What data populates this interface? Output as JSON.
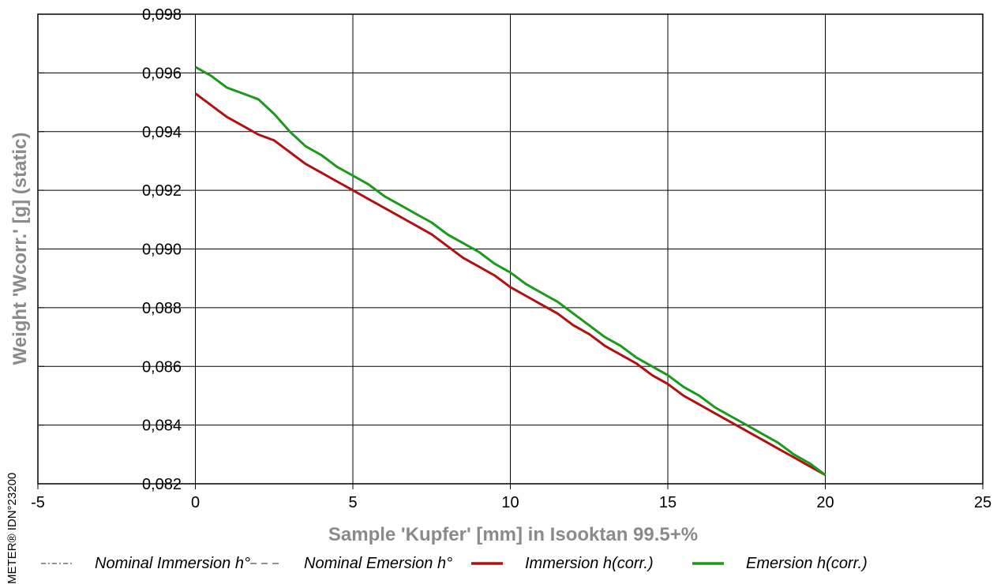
{
  "chart_data": {
    "type": "line",
    "title": "",
    "xlabel": "Sample 'Kupfer' [mm] in Isooktan 99.5+%",
    "ylabel": "Weight 'Wcorr.' [g]  (static)",
    "xlim": [
      -5,
      25
    ],
    "ylim": [
      0.082,
      0.098
    ],
    "x_ticks": [
      -5,
      0,
      5,
      10,
      15,
      20,
      25
    ],
    "x_tick_labels": [
      "-5",
      "0",
      "5",
      "10",
      "15",
      "20",
      "25"
    ],
    "y_ticks": [
      0.082,
      0.084,
      0.086,
      0.088,
      0.09,
      0.092,
      0.094,
      0.096,
      0.098
    ],
    "y_tick_labels": [
      "0,082",
      "0,084",
      "0,086",
      "0,088",
      "0,090",
      "0,092",
      "0,094",
      "0,096",
      "0,098"
    ],
    "grid": true,
    "legend_position": "bottom",
    "series": [
      {
        "name": "Nominal Immersion h°",
        "color": "#6e6e6e",
        "style": "dash-dot",
        "x": [
          0,
          0.5,
          1,
          1.5,
          2,
          2.5,
          3,
          3.5,
          4,
          4.5,
          5,
          5.5,
          6,
          6.5,
          7,
          7.5,
          8,
          8.5,
          9,
          9.5,
          10,
          10.5,
          11,
          11.5,
          12,
          12.5,
          13,
          13.5,
          14,
          14.5,
          15,
          15.5,
          16,
          16.5,
          17,
          17.5,
          18,
          18.5,
          19,
          19.5,
          20
        ],
        "y": [
          0.0953,
          0.0949,
          0.0945,
          0.0942,
          0.0939,
          0.0937,
          0.0933,
          0.0929,
          0.0926,
          0.0923,
          0.092,
          0.0917,
          0.0914,
          0.0911,
          0.0908,
          0.0905,
          0.0901,
          0.0897,
          0.0894,
          0.0891,
          0.0887,
          0.0884,
          0.0881,
          0.0878,
          0.0874,
          0.0871,
          0.0867,
          0.0864,
          0.0861,
          0.0857,
          0.0854,
          0.085,
          0.0847,
          0.0844,
          0.0841,
          0.0838,
          0.0835,
          0.0832,
          0.0829,
          0.0826,
          0.0823
        ]
      },
      {
        "name": "Nominal Emersion h°",
        "color": "#5a7a5a",
        "style": "dash",
        "x": [
          0,
          0.5,
          1,
          1.5,
          2,
          2.5,
          3,
          3.5,
          4,
          4.5,
          5,
          5.5,
          6,
          6.5,
          7,
          7.5,
          8,
          8.5,
          9,
          9.5,
          10,
          10.5,
          11,
          11.5,
          12,
          12.5,
          13,
          13.5,
          14,
          14.5,
          15,
          15.5,
          16,
          16.5,
          17,
          17.5,
          18,
          18.5,
          19,
          19.5,
          20
        ],
        "y": [
          0.0962,
          0.0959,
          0.0955,
          0.0953,
          0.0951,
          0.0946,
          0.094,
          0.0935,
          0.0932,
          0.0928,
          0.0925,
          0.0922,
          0.0918,
          0.0915,
          0.0912,
          0.0909,
          0.0905,
          0.0902,
          0.0899,
          0.0895,
          0.0892,
          0.0888,
          0.0885,
          0.0882,
          0.0878,
          0.0874,
          0.087,
          0.0867,
          0.0863,
          0.086,
          0.0857,
          0.0853,
          0.085,
          0.0846,
          0.0843,
          0.084,
          0.0837,
          0.0834,
          0.083,
          0.0827,
          0.0823
        ]
      },
      {
        "name": "Immersion h(corr.)",
        "color": "#b01010",
        "style": "solid",
        "x": [
          0,
          0.5,
          1,
          1.5,
          2,
          2.5,
          3,
          3.5,
          4,
          4.5,
          5,
          5.5,
          6,
          6.5,
          7,
          7.5,
          8,
          8.5,
          9,
          9.5,
          10,
          10.5,
          11,
          11.5,
          12,
          12.5,
          13,
          13.5,
          14,
          14.5,
          15,
          15.5,
          16,
          16.5,
          17,
          17.5,
          18,
          18.5,
          19,
          19.5,
          20
        ],
        "y": [
          0.0953,
          0.0949,
          0.0945,
          0.0942,
          0.0939,
          0.0937,
          0.0933,
          0.0929,
          0.0926,
          0.0923,
          0.092,
          0.0917,
          0.0914,
          0.0911,
          0.0908,
          0.0905,
          0.0901,
          0.0897,
          0.0894,
          0.0891,
          0.0887,
          0.0884,
          0.0881,
          0.0878,
          0.0874,
          0.0871,
          0.0867,
          0.0864,
          0.0861,
          0.0857,
          0.0854,
          0.085,
          0.0847,
          0.0844,
          0.0841,
          0.0838,
          0.0835,
          0.0832,
          0.0829,
          0.0826,
          0.0823
        ]
      },
      {
        "name": "Emersion h(corr.)",
        "color": "#1a9a1a",
        "style": "solid",
        "x": [
          0,
          0.5,
          1,
          1.5,
          2,
          2.5,
          3,
          3.5,
          4,
          4.5,
          5,
          5.5,
          6,
          6.5,
          7,
          7.5,
          8,
          8.5,
          9,
          9.5,
          10,
          10.5,
          11,
          11.5,
          12,
          12.5,
          13,
          13.5,
          14,
          14.5,
          15,
          15.5,
          16,
          16.5,
          17,
          17.5,
          18,
          18.5,
          19,
          19.5,
          20
        ],
        "y": [
          0.0962,
          0.0959,
          0.0955,
          0.0953,
          0.0951,
          0.0946,
          0.094,
          0.0935,
          0.0932,
          0.0928,
          0.0925,
          0.0922,
          0.0918,
          0.0915,
          0.0912,
          0.0909,
          0.0905,
          0.0902,
          0.0899,
          0.0895,
          0.0892,
          0.0888,
          0.0885,
          0.0882,
          0.0878,
          0.0874,
          0.087,
          0.0867,
          0.0863,
          0.086,
          0.0857,
          0.0853,
          0.085,
          0.0846,
          0.0843,
          0.084,
          0.0837,
          0.0834,
          0.083,
          0.0827,
          0.0823
        ]
      }
    ]
  },
  "watermark": "METER® IDN°23200"
}
